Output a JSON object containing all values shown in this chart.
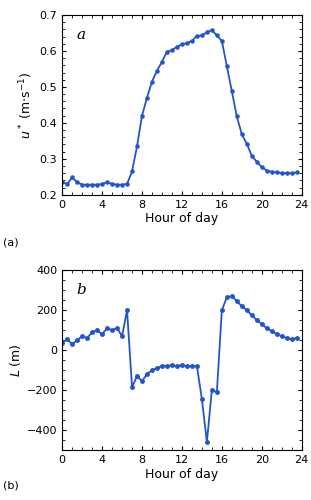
{
  "u_star_hours": [
    0.0,
    0.5,
    1.0,
    1.5,
    2.0,
    2.5,
    3.0,
    3.5,
    4.0,
    4.5,
    5.0,
    5.5,
    6.0,
    6.5,
    7.0,
    7.5,
    8.0,
    8.5,
    9.0,
    9.5,
    10.0,
    10.5,
    11.0,
    11.5,
    12.0,
    12.5,
    13.0,
    13.5,
    14.0,
    14.5,
    15.0,
    15.5,
    16.0,
    16.5,
    17.0,
    17.5,
    18.0,
    18.5,
    19.0,
    19.5,
    20.0,
    20.5,
    21.0,
    21.5,
    22.0,
    22.5,
    23.0,
    23.5
  ],
  "u_star_values": [
    0.235,
    0.23,
    0.248,
    0.235,
    0.228,
    0.228,
    0.228,
    0.228,
    0.23,
    0.235,
    0.23,
    0.228,
    0.228,
    0.23,
    0.265,
    0.335,
    0.42,
    0.47,
    0.515,
    0.545,
    0.57,
    0.598,
    0.602,
    0.612,
    0.618,
    0.622,
    0.628,
    0.642,
    0.643,
    0.652,
    0.658,
    0.643,
    0.628,
    0.558,
    0.488,
    0.418,
    0.368,
    0.342,
    0.308,
    0.292,
    0.277,
    0.267,
    0.264,
    0.262,
    0.26,
    0.26,
    0.26,
    0.262
  ],
  "L_hours": [
    0.0,
    0.5,
    1.0,
    1.5,
    2.0,
    2.5,
    3.0,
    3.5,
    4.0,
    4.5,
    5.0,
    5.5,
    6.0,
    6.5,
    7.0,
    7.5,
    8.0,
    8.5,
    9.0,
    9.5,
    10.0,
    10.5,
    11.0,
    11.5,
    12.0,
    12.5,
    13.0,
    13.5,
    14.0,
    14.5,
    15.0,
    15.5,
    16.0,
    16.5,
    17.0,
    17.5,
    18.0,
    18.5,
    19.0,
    19.5,
    20.0,
    20.5,
    21.0,
    21.5,
    22.0,
    22.5,
    23.0,
    23.5
  ],
  "L_values": [
    35,
    55,
    30,
    50,
    70,
    60,
    90,
    100,
    80,
    110,
    100,
    110,
    70,
    200,
    -185,
    -130,
    -155,
    -120,
    -100,
    -90,
    -80,
    -80,
    -75,
    -80,
    -75,
    -80,
    -80,
    -80,
    -245,
    -460,
    -200,
    -210,
    200,
    265,
    270,
    245,
    220,
    200,
    175,
    150,
    130,
    110,
    95,
    80,
    70,
    60,
    55,
    60
  ],
  "line_color": "#2255cc",
  "marker": ".",
  "markersize_a": 4.5,
  "markersize_b": 5,
  "linewidth": 1.3,
  "title_a": "a",
  "title_b": "b",
  "ylabel_a": "$u^*$ (m$\\cdot$s$^{-1}$)",
  "ylabel_b": "$L$ (m)",
  "xlabel": "Hour of day",
  "xlim": [
    0,
    24
  ],
  "ylim_a": [
    0.2,
    0.7
  ],
  "ylim_b": [
    -500,
    400
  ],
  "yticks_a": [
    0.2,
    0.3,
    0.4,
    0.5,
    0.6,
    0.7
  ],
  "yticks_b": [
    -400,
    -200,
    0,
    200,
    400
  ],
  "xticks": [
    0,
    4,
    8,
    12,
    16,
    20,
    24
  ],
  "panel_label_a": "(a)",
  "panel_label_b": "(b)"
}
